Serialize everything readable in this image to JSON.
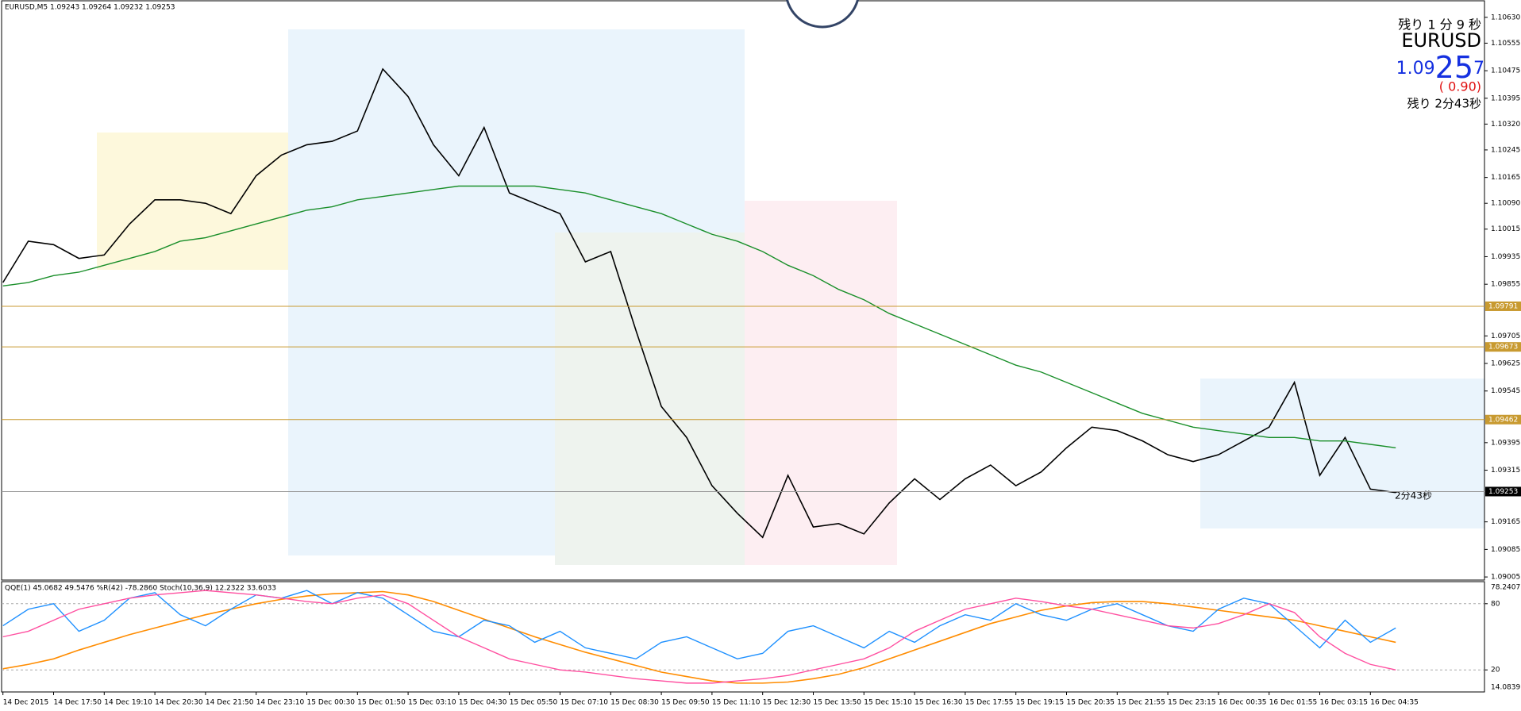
{
  "chart_data": [
    {
      "type": "line",
      "header": "EURUSD,M5  1.09243 1.09264 1.09232 1.09253",
      "overlay": {
        "timer": "残り 1 分 9 秒",
        "symbol": "EURUSD",
        "price_big": [
          "1.09",
          "25",
          "7"
        ],
        "change": "( 0.90)",
        "timer2": "残り 2分43秒",
        "timer3": "2分43秒"
      },
      "categories": [
        "14 Dec 2015",
        null,
        "14 Dec 17:50",
        null,
        "14 Dec 19:10",
        null,
        "14 Dec 20:30",
        null,
        "14 Dec 21:50",
        null,
        "14 Dec 23:10",
        null,
        "15 Dec 00:30",
        null,
        "15 Dec 01:50",
        null,
        "15 Dec 03:10",
        null,
        "15 Dec 04:30",
        null,
        "15 Dec 05:50",
        null,
        "15 Dec 07:10",
        null,
        "15 Dec 08:30",
        null,
        "15 Dec 09:50",
        null,
        "15 Dec 11:10",
        null,
        "15 Dec 12:30",
        null,
        "15 Dec 13:50",
        null,
        "15 Dec 15:10",
        null,
        "15 Dec 16:30",
        null,
        "15 Dec 17:55",
        null,
        "15 Dec 19:15",
        null,
        "15 Dec 20:35",
        null,
        "15 Dec 21:55",
        null,
        "15 Dec 23:15",
        null,
        "16 Dec 00:35",
        null,
        "16 Dec 01:55",
        null,
        "16 Dec 03:15",
        null,
        "16 Dec 04:35",
        null
      ],
      "series": [
        {
          "color": "#000000",
          "values": [
            1.0986,
            1.0998,
            1.0997,
            1.0993,
            1.0994,
            1.1003,
            1.101,
            1.101,
            1.1009,
            1.1006,
            1.1017,
            1.1023,
            1.1026,
            1.1027,
            1.103,
            1.1048,
            1.104,
            1.1026,
            1.1017,
            1.1031,
            1.1012,
            1.1009,
            1.1006,
            1.0992,
            1.0995,
            1.0972,
            1.095,
            1.0941,
            1.0927,
            1.0919,
            1.0912,
            1.093,
            1.0915,
            1.0916,
            1.0913,
            1.0922,
            1.0929,
            1.0923,
            1.0929,
            1.0933,
            1.0927,
            1.0931,
            1.0938,
            1.0944,
            1.0943,
            1.094,
            1.0936,
            1.0934,
            1.0936,
            1.094,
            1.0944,
            1.0957,
            1.093,
            1.0941,
            1.0926,
            1.0925
          ]
        },
        {
          "color": "#1a8f2a",
          "values": [
            1.0985,
            1.0986,
            1.0988,
            1.0989,
            1.0991,
            1.0993,
            1.0995,
            1.0998,
            1.0999,
            1.1001,
            1.1003,
            1.1005,
            1.1007,
            1.1008,
            1.101,
            1.1011,
            1.1012,
            1.1013,
            1.1014,
            1.1014,
            1.1014,
            1.1014,
            1.1013,
            1.1012,
            1.101,
            1.1008,
            1.1006,
            1.1003,
            1.1,
            1.0998,
            1.0995,
            1.0991,
            1.0988,
            1.0984,
            1.0981,
            1.0977,
            1.0974,
            1.0971,
            1.0968,
            1.0965,
            1.0962,
            1.096,
            1.0957,
            1.0954,
            1.0951,
            1.0948,
            1.0946,
            1.0944,
            1.0943,
            1.0942,
            1.0941,
            1.0941,
            1.094,
            1.094,
            1.0939,
            1.0938
          ]
        }
      ],
      "ylim": [
        1.08996,
        1.10678
      ],
      "yticks": [
        {
          "value": 1.1063,
          "label": "1.10630"
        },
        1.10555,
        1.10475,
        1.10395,
        {
          "value": 1.1032,
          "label": "1.10320"
        },
        1.10245,
        1.10165,
        {
          "value": 1.1009,
          "label": "1.10090"
        },
        1.10015,
        1.09935,
        1.09855,
        1.09705,
        1.09625,
        1.09545,
        1.09395,
        1.09315,
        1.09165,
        1.09085,
        1.09005
      ],
      "levels": [
        1.09791,
        1.09673,
        1.09462
      ],
      "level_color": "#c89a30",
      "current_price": 1.09253
    },
    {
      "type": "line",
      "title": "QQE(1) 45.0682 49.5476  %R(42) -78.2860  Stoch(10,36,9) 12.2322 33.6033",
      "scale_max": 78.2407,
      "scale_min": 14.0839,
      "series": [
        {
          "color": "#ff8c00",
          "values": [
            21,
            25,
            30,
            38,
            45,
            52,
            58,
            64,
            70,
            75,
            80,
            84,
            87,
            89,
            90,
            91,
            88,
            82,
            74,
            66,
            58,
            50,
            43,
            36,
            30,
            24,
            18,
            14,
            10,
            8,
            8,
            9,
            12,
            16,
            22,
            30,
            38,
            46,
            54,
            62,
            68,
            74,
            78,
            81,
            82,
            82,
            80,
            77,
            74,
            71,
            68,
            65,
            60,
            55,
            50,
            45
          ]
        },
        {
          "color": "#1e90ff",
          "values": [
            60,
            75,
            80,
            55,
            65,
            85,
            90,
            70,
            60,
            75,
            88,
            85,
            92,
            80,
            90,
            85,
            70,
            55,
            50,
            65,
            60,
            45,
            55,
            40,
            35,
            30,
            45,
            50,
            40,
            30,
            35,
            55,
            60,
            50,
            40,
            55,
            45,
            60,
            70,
            65,
            80,
            70,
            65,
            75,
            80,
            70,
            60,
            55,
            75,
            85,
            80,
            60,
            40,
            65,
            45,
            58
          ]
        },
        {
          "color": "#ff4fa0",
          "values": [
            50,
            55,
            65,
            75,
            80,
            85,
            88,
            90,
            92,
            90,
            88,
            85,
            82,
            80,
            85,
            88,
            80,
            65,
            50,
            40,
            30,
            25,
            20,
            18,
            15,
            12,
            10,
            8,
            8,
            10,
            12,
            15,
            20,
            25,
            30,
            40,
            55,
            65,
            75,
            80,
            85,
            82,
            78,
            75,
            70,
            65,
            60,
            58,
            62,
            70,
            80,
            72,
            50,
            35,
            25,
            20
          ]
        }
      ],
      "ylim": [
        0,
        100
      ],
      "yticks": [
        80,
        20
      ]
    }
  ]
}
